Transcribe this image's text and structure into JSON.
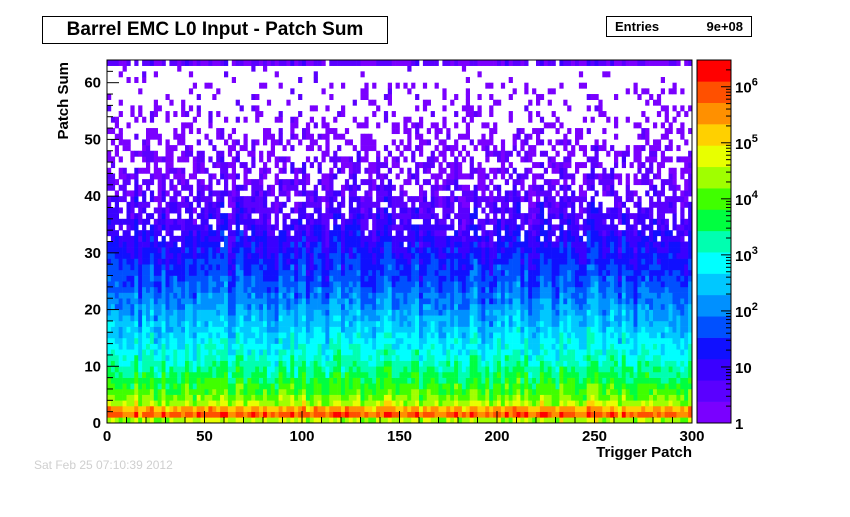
{
  "chart_data": {
    "type": "heatmap",
    "title": "Barrel EMC L0 Input - Patch Sum",
    "xlabel": "Trigger Patch",
    "ylabel": "Patch Sum",
    "xlim": [
      0,
      300
    ],
    "ylim": [
      0,
      64
    ],
    "x_ticks": [
      0,
      50,
      100,
      150,
      200,
      250,
      300
    ],
    "y_ticks": [
      0,
      10,
      20,
      30,
      40,
      50,
      60
    ],
    "z_scale": "log",
    "z_range": [
      1,
      3000000
    ],
    "z_tick_labels": [
      {
        "value": 1,
        "base": "1",
        "exp": ""
      },
      {
        "value": 10,
        "base": "10",
        "exp": ""
      },
      {
        "value": 100,
        "base": "10",
        "exp": "2"
      },
      {
        "value": 1000,
        "base": "10",
        "exp": "3"
      },
      {
        "value": 10000,
        "base": "10",
        "exp": "4"
      },
      {
        "value": 100000,
        "base": "10",
        "exp": "5"
      },
      {
        "value": 1000000,
        "base": "10",
        "exp": "6"
      }
    ],
    "palette": [
      "#7a00ff",
      "#5a00ff",
      "#3a00ff",
      "#1010ff",
      "#0050ff",
      "#0090ff",
      "#00c8ff",
      "#00ffff",
      "#00ffb0",
      "#00ff40",
      "#40ff00",
      "#a0ff00",
      "#e8ff00",
      "#ffd000",
      "#ff9000",
      "#ff5000",
      "#ff0000"
    ],
    "stats": {
      "entries_label": "Entries",
      "entries_value": "9e+08"
    },
    "profile": [
      {
        "sum": 0,
        "log10_counts": 3.4
      },
      {
        "sum": 1,
        "log10_counts": 5.5
      },
      {
        "sum": 2,
        "log10_counts": 6.2
      },
      {
        "sum": 3,
        "log10_counts": 4.6
      },
      {
        "sum": 5,
        "log10_counts": 4.1
      },
      {
        "sum": 8,
        "log10_counts": 3.6
      },
      {
        "sum": 12,
        "log10_counts": 3.0
      },
      {
        "sum": 16,
        "log10_counts": 2.6
      },
      {
        "sum": 20,
        "log10_counts": 2.2
      },
      {
        "sum": 25,
        "log10_counts": 1.7
      },
      {
        "sum": 30,
        "log10_counts": 1.3
      },
      {
        "sum": 35,
        "log10_counts": 0.9
      },
      {
        "sum": 40,
        "log10_counts": 0.6
      },
      {
        "sum": 45,
        "log10_counts": 0.35
      },
      {
        "sum": 50,
        "log10_counts": 0.2
      },
      {
        "sum": 55,
        "log10_counts": 0.1
      },
      {
        "sum": 60,
        "log10_counts": 0.05
      },
      {
        "sum": 63,
        "log10_counts": 0.4
      }
    ],
    "grid": false,
    "legend": "color-scale-right"
  },
  "footer": {
    "timestamp": "Sat Feb 25 07:10:39 2012"
  }
}
